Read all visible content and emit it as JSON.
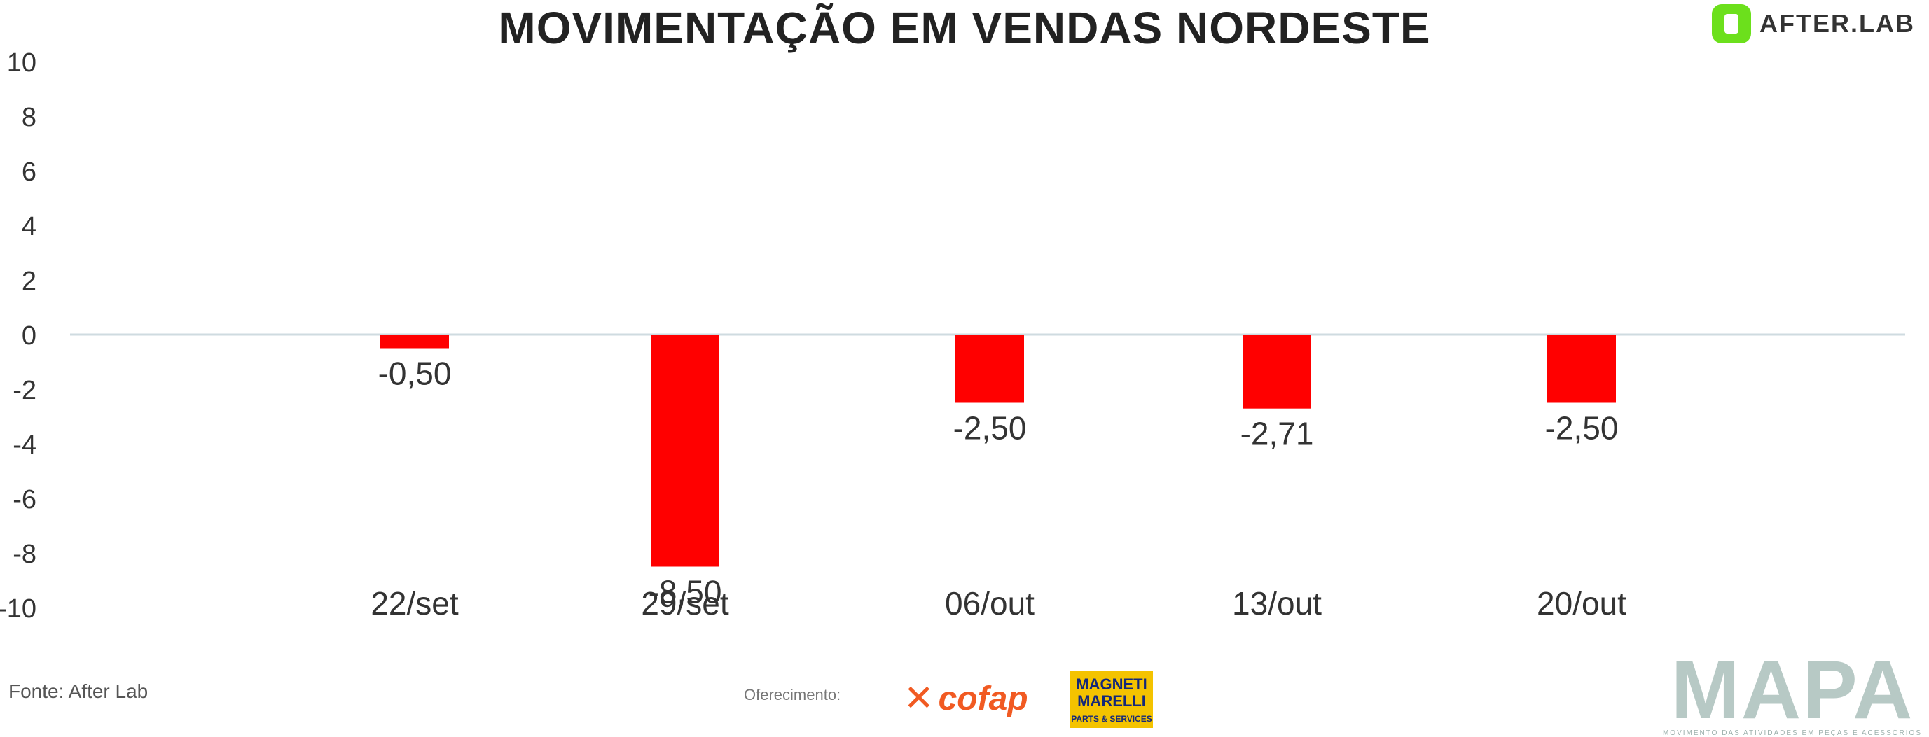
{
  "header": {
    "title": "MOVIMENTAÇÃO EM VENDAS NORDESTE",
    "brand": "AFTER.LAB",
    "brand_color": "#6ce01c"
  },
  "footer": {
    "source": "Fonte: After Lab",
    "sponsor_label": "Oferecimento:",
    "sponsor_1": "cofap",
    "sponsor_2_main": "MAGNETI MARELLI",
    "sponsor_2_sub": "PARTS & SERVICES",
    "mapa": "MAPA",
    "mapa_sub": "MOVIMENTO DAS ATIVIDADES EM PEÇAS E ACESSÓRIOS"
  },
  "chart_data": {
    "type": "bar",
    "title": "MOVIMENTAÇÃO EM VENDAS NORDESTE",
    "categories": [
      "22/set",
      "29/set",
      "06/out",
      "13/out",
      "20/out"
    ],
    "values": [
      -0.5,
      -8.5,
      -2.5,
      -2.71,
      -2.5
    ],
    "labels": [
      "-0,50",
      "-8,50",
      "-2,50",
      "-2,71",
      "-2,50"
    ],
    "y_ticks": [
      10,
      8,
      6,
      4,
      2,
      0,
      -2,
      -4,
      -6,
      -8,
      -10
    ],
    "ylim": [
      -10,
      10
    ],
    "grid": false,
    "bar_color": "#ff0000",
    "zero_line_color": "#cfdbe0"
  }
}
